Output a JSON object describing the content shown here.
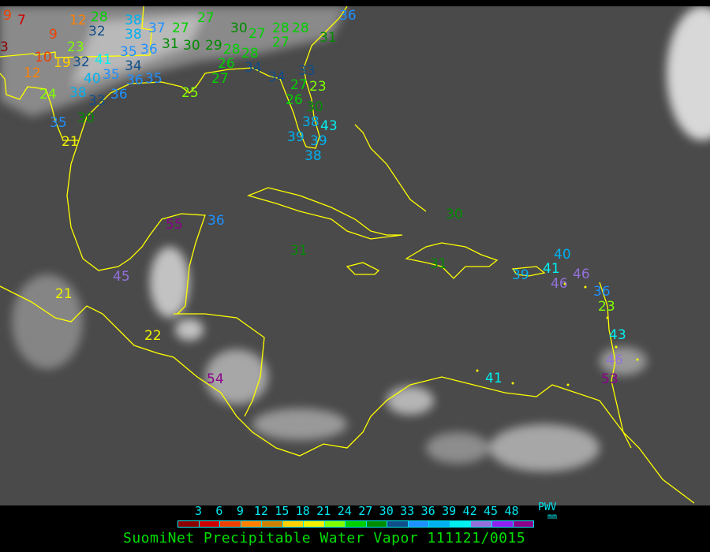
{
  "title": "SuomiNet Precipitable Water Vapor 111121/0015",
  "legend": {
    "unit_top": "PWV",
    "unit_bottom": "mm",
    "ticks": [
      "3",
      "6",
      "9",
      "12",
      "15",
      "18",
      "21",
      "24",
      "27",
      "30",
      "33",
      "36",
      "39",
      "42",
      "45",
      "48"
    ],
    "colors": [
      "#8b0000",
      "#d00000",
      "#f04000",
      "#ff8000",
      "#d08000",
      "#ffd000",
      "#f0f000",
      "#80ff00",
      "#00d000",
      "#008c00",
      "#104e8b",
      "#1e90ff",
      "#00b0f0",
      "#00f0f0",
      "#9370db",
      "#9020f0",
      "#8b008b"
    ]
  },
  "map": {
    "background": "grayscale infrared satellite imagery",
    "boundary_color": "#ffff00",
    "stations": [
      "9",
      "7",
      "12",
      "28",
      "38",
      "32",
      "38",
      "37",
      "27",
      "27",
      "30",
      "27",
      "28",
      "28",
      "27",
      "36",
      "31",
      "9",
      "3",
      "23",
      "31",
      "30",
      "29",
      "28",
      "28",
      "26",
      "10",
      "19",
      "32",
      "41",
      "35",
      "36",
      "34",
      "12",
      "40",
      "35",
      "36",
      "35",
      "24",
      "38",
      "33",
      "36",
      "35",
      "30",
      "21",
      "33",
      "34",
      "27",
      "23",
      "26",
      "30",
      "38",
      "43",
      "39",
      "39",
      "38",
      "25",
      "27",
      "34",
      "55",
      "36",
      "30",
      "31",
      "31",
      "45",
      "21",
      "22",
      "54",
      "39",
      "41",
      "40",
      "46",
      "46",
      "36",
      "23",
      "43",
      "46",
      "53",
      "41"
    ]
  }
}
